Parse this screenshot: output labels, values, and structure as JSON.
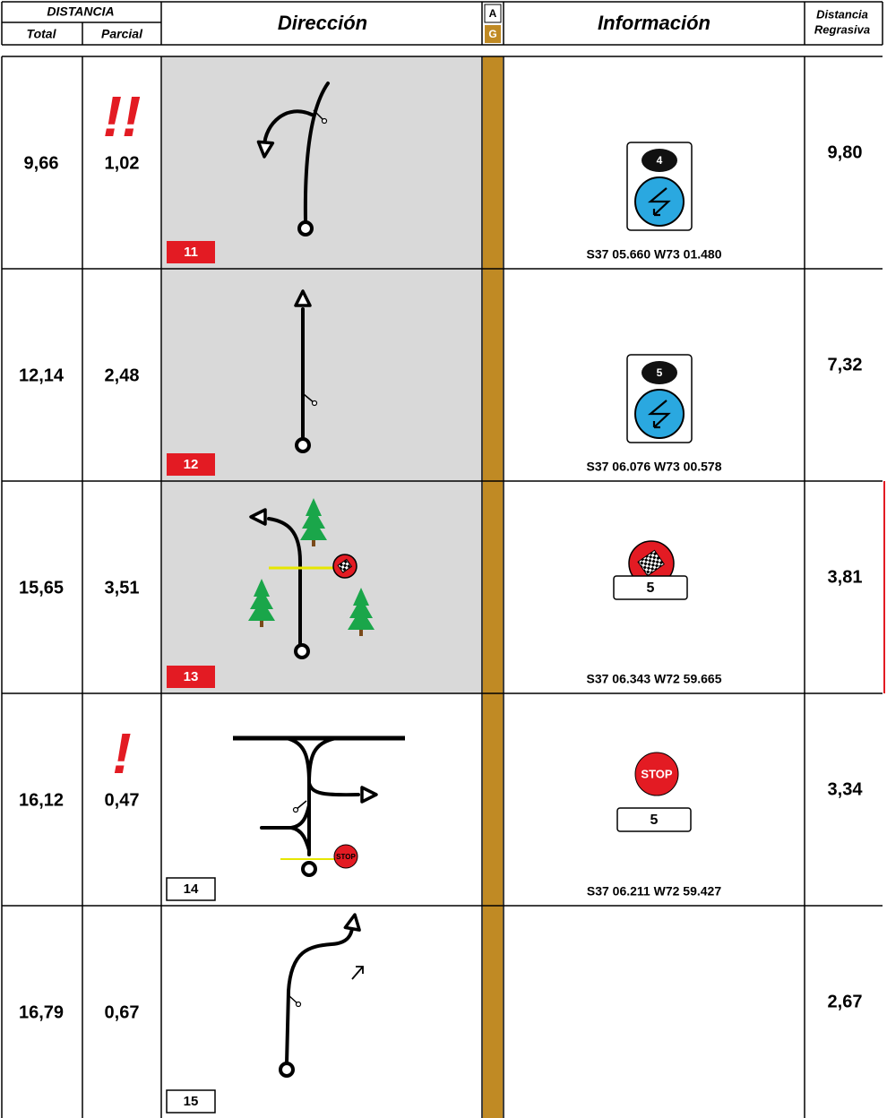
{
  "header": {
    "distancia": "DISTANCIA",
    "total": "Total",
    "parcial": "Parcial",
    "direccion": "Dirección",
    "a": "A",
    "g": "G",
    "informacion": "Información",
    "regresiva_1": "Distancia",
    "regresiva_2": "Regrasiva"
  },
  "rows": [
    {
      "total": "9,66",
      "partial": "1,02",
      "caution": "!!",
      "box": "11",
      "sign_number": "4",
      "coords": "S37 05.660 W73 01.480",
      "remaining": "9,80"
    },
    {
      "total": "12,14",
      "partial": "2,48",
      "box": "12",
      "sign_number": "5",
      "coords": "S37 06.076 W73 00.578",
      "remaining": "7,32"
    },
    {
      "total": "15,65",
      "partial": "3,51",
      "box": "13",
      "sign_box": "5",
      "coords": "S37 06.343 W72 59.665",
      "remaining": "3,81"
    },
    {
      "total": "16,12",
      "partial": "0,47",
      "caution": "!",
      "box": "14",
      "diagram_sign": "STOP",
      "stop": "STOP",
      "sign_box": "5",
      "coords": "S37 06.211 W72 59.427",
      "remaining": "3,34"
    },
    {
      "total": "16,79",
      "partial": "0,67",
      "box": "15",
      "remaining": "2,67"
    }
  ]
}
